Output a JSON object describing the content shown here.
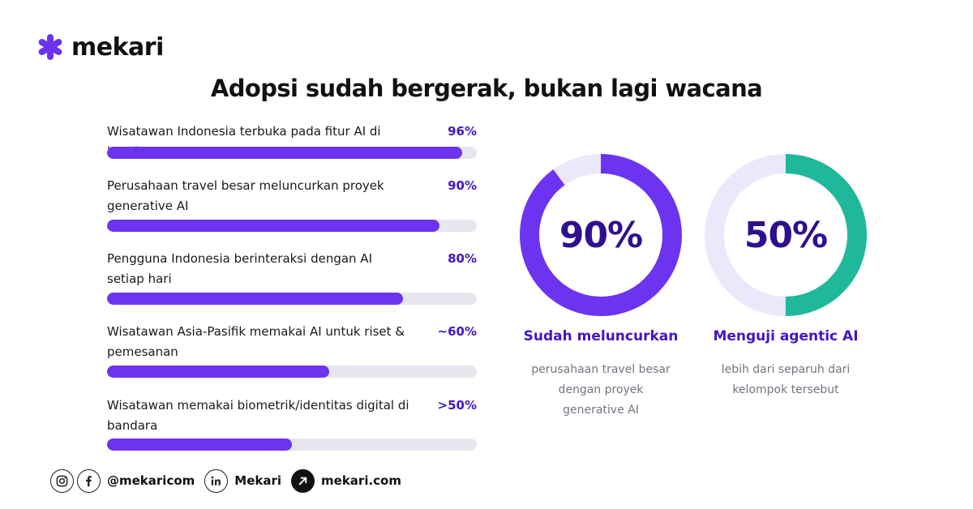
{
  "brand": {
    "name": "mekari",
    "color": "#6c34f0"
  },
  "headline": "Adopsi sudah bergerak, bukan lagi wacana",
  "chart_data": [
    {
      "type": "bar",
      "orientation": "horizontal",
      "categories": [
        "Wisatawan Indonesia terbuka pada fitur AI di hotel",
        "Perusahaan travel besar meluncurkan proyek generative AI",
        "Pengguna Indonesia berinteraksi dengan AI setiap hari",
        "Wisatawan Asia-Pasifik memakai AI untuk riset & pemesanan",
        "Wisatawan memakai biometrik/identitas digital di bandara"
      ],
      "values": [
        96,
        90,
        80,
        60,
        50
      ],
      "value_labels": [
        "96%",
        "90%",
        "80%",
        "~60%",
        ">50%"
      ],
      "xlim": [
        0,
        100
      ],
      "fill_color": "#6c34f0",
      "track_color": "#e7e6ef"
    },
    {
      "type": "pie",
      "style": "donut",
      "values": [
        90,
        10
      ],
      "center_label": "90%",
      "caption_title": "Sudah meluncurkan",
      "caption_lines": [
        "perusahaan travel besar",
        "dengan proyek",
        "generative AI"
      ],
      "color": "#6c34f0",
      "track_color": "#ece8fb"
    },
    {
      "type": "pie",
      "style": "donut",
      "values": [
        50,
        50
      ],
      "center_label": "50%",
      "caption_title": "Menguji agentic AI",
      "caption_lines": [
        "lebih dari separuh dari",
        "kelompok tersebut"
      ],
      "color": "#1fb89a",
      "track_color": "#ece8fb"
    }
  ],
  "footer": {
    "social_handle": "@mekaricom",
    "linkedin": "Mekari",
    "website": "mekari.com",
    "icons": [
      "instagram-icon",
      "facebook-icon",
      "linkedin-icon",
      "arrow-up-right-icon"
    ]
  }
}
